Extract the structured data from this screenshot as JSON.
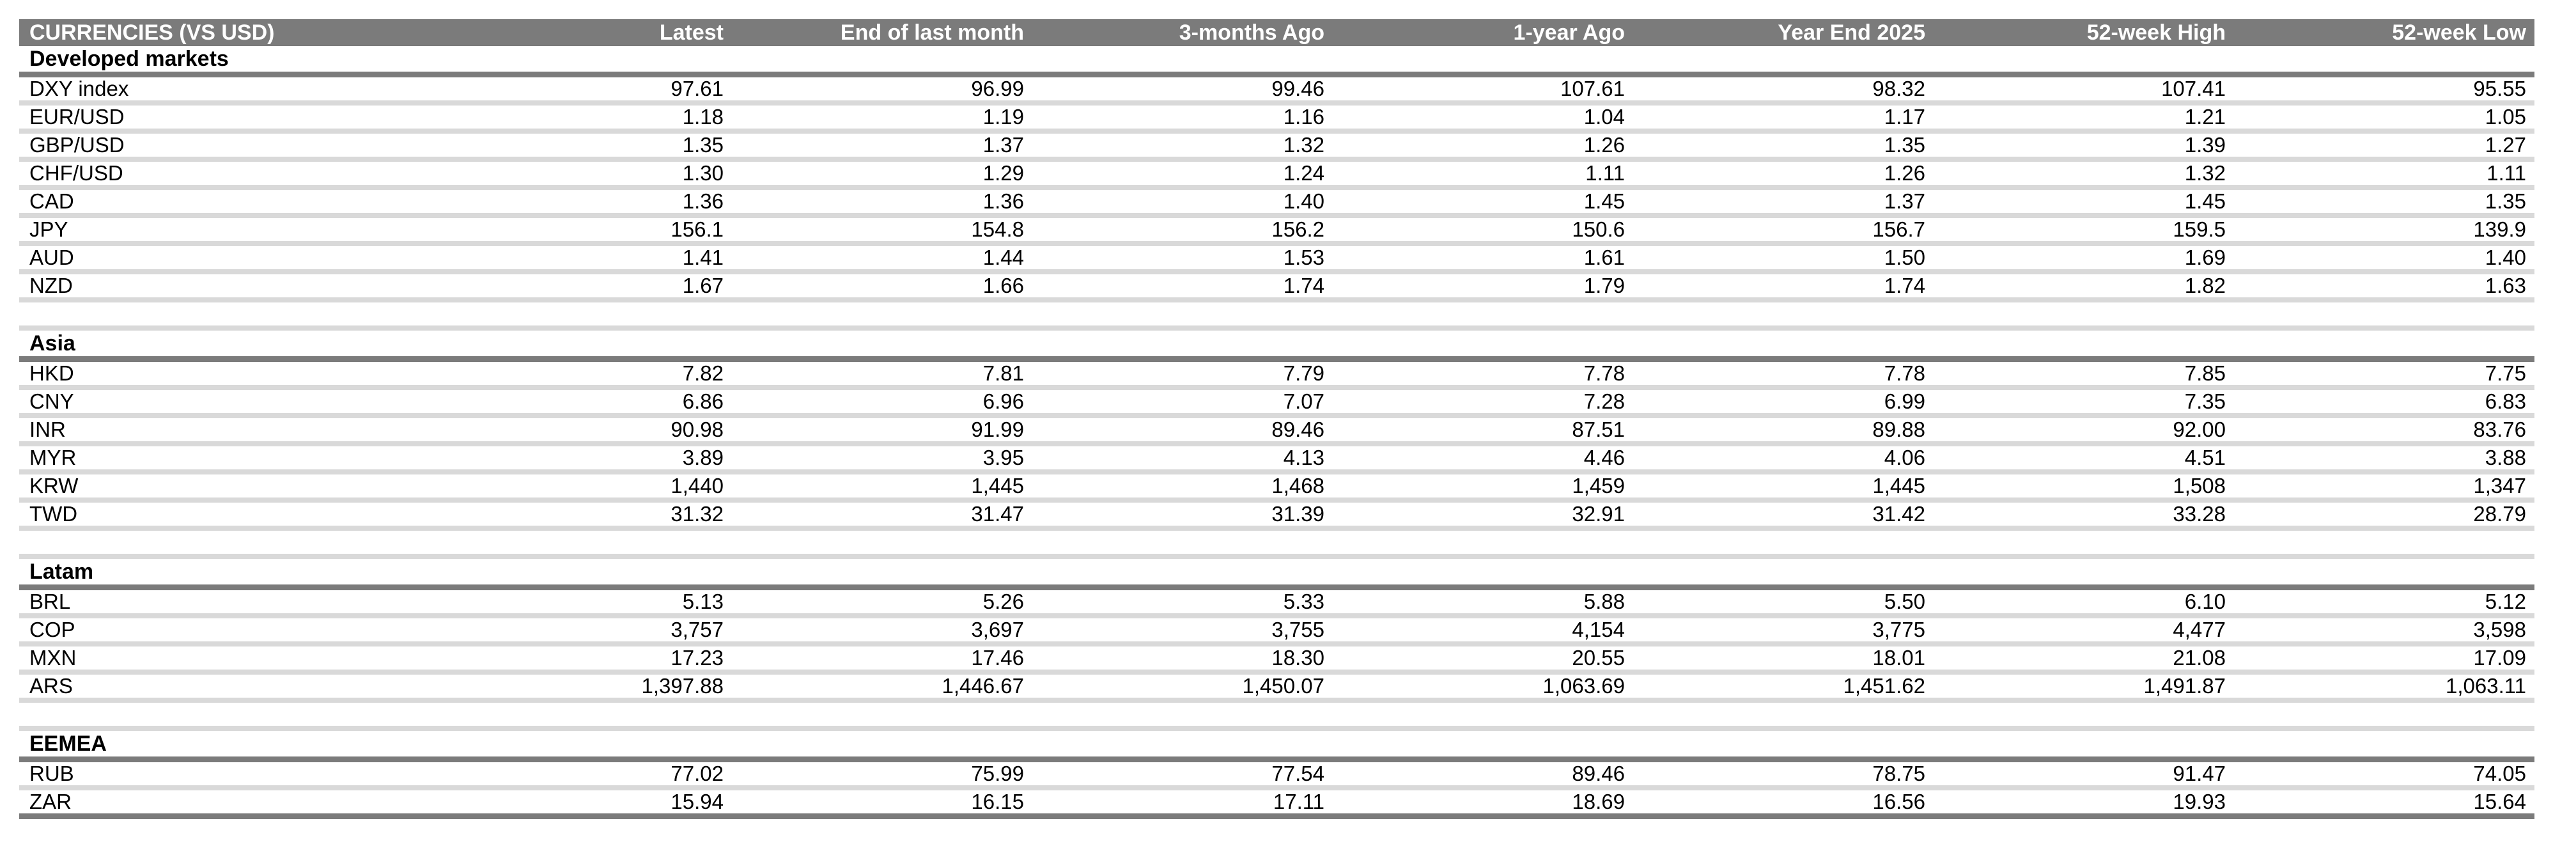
{
  "colors": {
    "bar_gray": "#7b7b7b",
    "separator_gray": "#d9d9d9",
    "text": "#000000",
    "header_text": "#ffffff"
  },
  "table": {
    "columns": [
      "CURRENCIES (VS USD)",
      "Latest",
      "End of last month",
      "3-months Ago",
      "1-year Ago",
      "Year End 2025",
      "52-week High",
      "52-week Low"
    ],
    "sections": [
      {
        "title": "Developed markets",
        "rows": [
          {
            "label": "DXY index",
            "values": [
              "97.61",
              "96.99",
              "99.46",
              "107.61",
              "98.32",
              "107.41",
              "95.55"
            ]
          },
          {
            "label": "EUR/USD",
            "values": [
              "1.18",
              "1.19",
              "1.16",
              "1.04",
              "1.17",
              "1.21",
              "1.05"
            ]
          },
          {
            "label": "GBP/USD",
            "values": [
              "1.35",
              "1.37",
              "1.32",
              "1.26",
              "1.35",
              "1.39",
              "1.27"
            ]
          },
          {
            "label": "CHF/USD",
            "values": [
              "1.30",
              "1.29",
              "1.24",
              "1.11",
              "1.26",
              "1.32",
              "1.11"
            ]
          },
          {
            "label": "CAD",
            "values": [
              "1.36",
              "1.36",
              "1.40",
              "1.45",
              "1.37",
              "1.45",
              "1.35"
            ]
          },
          {
            "label": "JPY",
            "values": [
              "156.1",
              "154.8",
              "156.2",
              "150.6",
              "156.7",
              "159.5",
              "139.9"
            ]
          },
          {
            "label": "AUD",
            "values": [
              "1.41",
              "1.44",
              "1.53",
              "1.61",
              "1.50",
              "1.69",
              "1.40"
            ]
          },
          {
            "label": "NZD",
            "values": [
              "1.67",
              "1.66",
              "1.74",
              "1.79",
              "1.74",
              "1.82",
              "1.63"
            ]
          }
        ]
      },
      {
        "title": "Asia",
        "rows": [
          {
            "label": "HKD",
            "values": [
              "7.82",
              "7.81",
              "7.79",
              "7.78",
              "7.78",
              "7.85",
              "7.75"
            ]
          },
          {
            "label": "CNY",
            "values": [
              "6.86",
              "6.96",
              "7.07",
              "7.28",
              "6.99",
              "7.35",
              "6.83"
            ]
          },
          {
            "label": "INR",
            "values": [
              "90.98",
              "91.99",
              "89.46",
              "87.51",
              "89.88",
              "92.00",
              "83.76"
            ]
          },
          {
            "label": "MYR",
            "values": [
              "3.89",
              "3.95",
              "4.13",
              "4.46",
              "4.06",
              "4.51",
              "3.88"
            ]
          },
          {
            "label": "KRW",
            "values": [
              "1,440",
              "1,445",
              "1,468",
              "1,459",
              "1,445",
              "1,508",
              "1,347"
            ]
          },
          {
            "label": "TWD",
            "values": [
              "31.32",
              "31.47",
              "31.39",
              "32.91",
              "31.42",
              "33.28",
              "28.79"
            ]
          }
        ]
      },
      {
        "title": "Latam",
        "rows": [
          {
            "label": "BRL",
            "values": [
              "5.13",
              "5.26",
              "5.33",
              "5.88",
              "5.50",
              "6.10",
              "5.12"
            ]
          },
          {
            "label": "COP",
            "values": [
              "3,757",
              "3,697",
              "3,755",
              "4,154",
              "3,775",
              "4,477",
              "3,598"
            ]
          },
          {
            "label": "MXN",
            "values": [
              "17.23",
              "17.46",
              "18.30",
              "20.55",
              "18.01",
              "21.08",
              "17.09"
            ]
          },
          {
            "label": "ARS",
            "values": [
              "1,397.88",
              "1,446.67",
              "1,450.07",
              "1,063.69",
              "1,451.62",
              "1,491.87",
              "1,063.11"
            ]
          }
        ]
      },
      {
        "title": "EEMEA",
        "rows": [
          {
            "label": "RUB",
            "values": [
              "77.02",
              "75.99",
              "77.54",
              "89.46",
              "78.75",
              "91.47",
              "74.05"
            ]
          },
          {
            "label": "ZAR",
            "values": [
              "15.94",
              "16.15",
              "17.11",
              "18.69",
              "16.56",
              "19.93",
              "15.64"
            ]
          }
        ]
      }
    ]
  }
}
